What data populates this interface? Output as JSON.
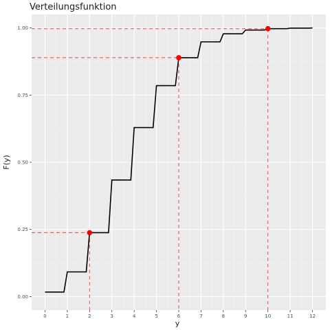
{
  "chart_data": {
    "type": "line",
    "subtype": "step",
    "title": "Verteilungsfunktion",
    "xlabel": "y",
    "ylabel": "F(y)",
    "xlim": [
      -0.6,
      12.6
    ],
    "ylim": [
      -0.05,
      1.05
    ],
    "x_ticks": [
      0,
      1,
      2,
      3,
      4,
      5,
      6,
      7,
      8,
      9,
      10,
      11,
      12
    ],
    "x_tick_labels": [
      "0",
      "1",
      "2",
      "3",
      "4",
      "5",
      "6",
      "7",
      "8",
      "9",
      "10",
      "11",
      "12"
    ],
    "y_ticks": [
      0,
      0.25,
      0.5,
      0.75,
      1.0
    ],
    "y_tick_labels": [
      "0.00",
      "0.25",
      "0.50",
      "0.75",
      "1.00"
    ],
    "grid": true,
    "background": "#ebebeb",
    "line_color": "#000000",
    "marker_color": "#ff0000",
    "guide_color": "#ff0000",
    "series": [
      {
        "x": [
          0,
          1,
          2,
          3,
          4,
          5,
          6,
          7,
          8,
          9,
          10,
          11,
          12
        ],
        "y": [
          0.017,
          0.092,
          0.238,
          0.434,
          0.629,
          0.785,
          0.889,
          0.948,
          0.978,
          0.992,
          0.997,
          0.999,
          1.0
        ]
      }
    ],
    "highlighted_points": [
      {
        "x": 2,
        "y": 0.238
      },
      {
        "x": 6,
        "y": 0.889
      },
      {
        "x": 10,
        "y": 0.997
      }
    ]
  }
}
